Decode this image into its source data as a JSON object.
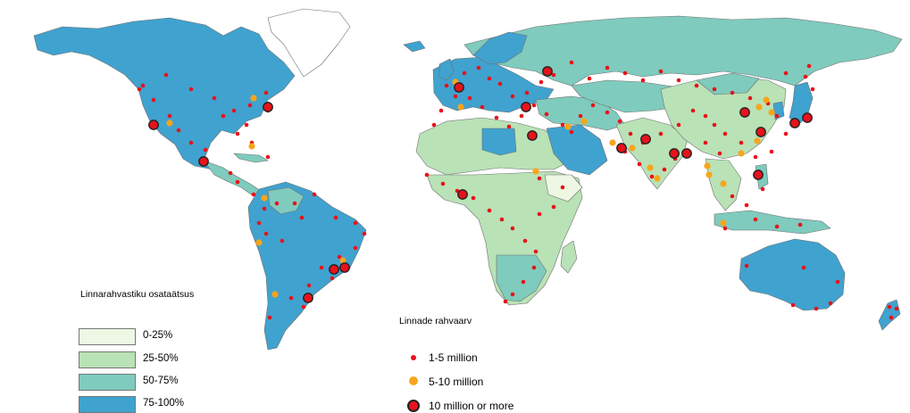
{
  "map": {
    "urban_legend": {
      "title": "Linnarahvastiku osataätsus",
      "classes": [
        {
          "label": "0-25%",
          "color": "#eef7e4"
        },
        {
          "label": "25-50%",
          "color": "#b9e2b6"
        },
        {
          "label": "50-75%",
          "color": "#7fcbbe"
        },
        {
          "label": "75-100%",
          "color": "#40a2cf"
        }
      ]
    },
    "city_legend": {
      "title": "Linnade rahvaarv",
      "items": [
        {
          "label": "1-5  million",
          "symbol": "small-red-dot",
          "color": "#e8121a"
        },
        {
          "label": "5-10 million",
          "symbol": "orange-dot",
          "color": "#f7a51a"
        },
        {
          "label": "10 million or more",
          "symbol": "large-red-ringed-dot",
          "color": "#e8121a"
        }
      ]
    },
    "colors": {
      "ocean": "#ffffff",
      "border": "#6f6f6f",
      "no_data": "#ffffff"
    }
  }
}
